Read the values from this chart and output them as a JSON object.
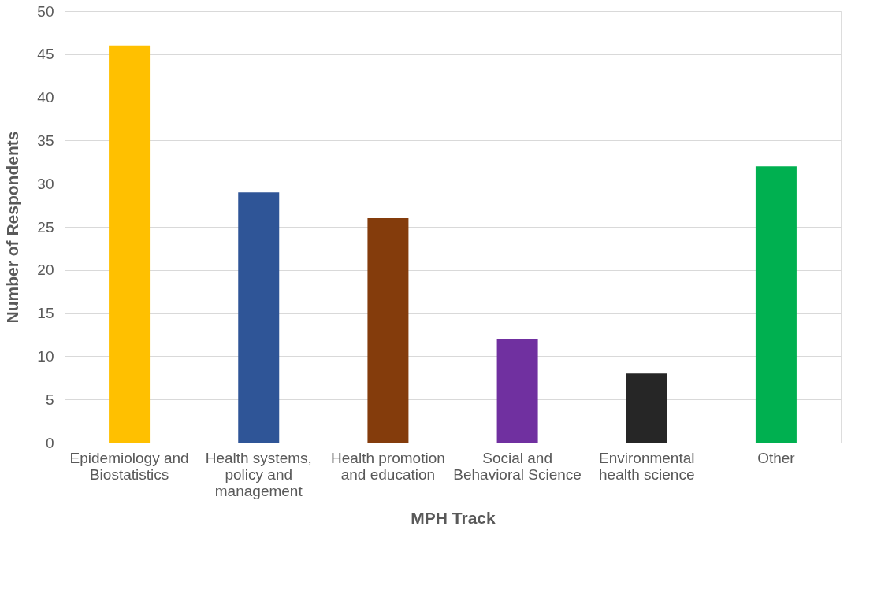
{
  "chart_data": {
    "type": "bar",
    "xlabel": "MPH Track",
    "ylabel": "Number of Respondents",
    "categories": [
      "Epidemiology and Biostatistics",
      "Health systems, policy and management",
      "Health promotion and education",
      "Social and Behavioral Science",
      "Environmental health science",
      "Other"
    ],
    "values": [
      46,
      29,
      26,
      12,
      8,
      32
    ],
    "colors": [
      "#ffc000",
      "#2f5597",
      "#843c0c",
      "#7030a0",
      "#262626",
      "#00b050"
    ],
    "ylim": [
      0,
      50
    ],
    "yticks": [
      0,
      5,
      10,
      15,
      20,
      25,
      30,
      35,
      40,
      45,
      50
    ],
    "grid": "y",
    "legend": false
  }
}
